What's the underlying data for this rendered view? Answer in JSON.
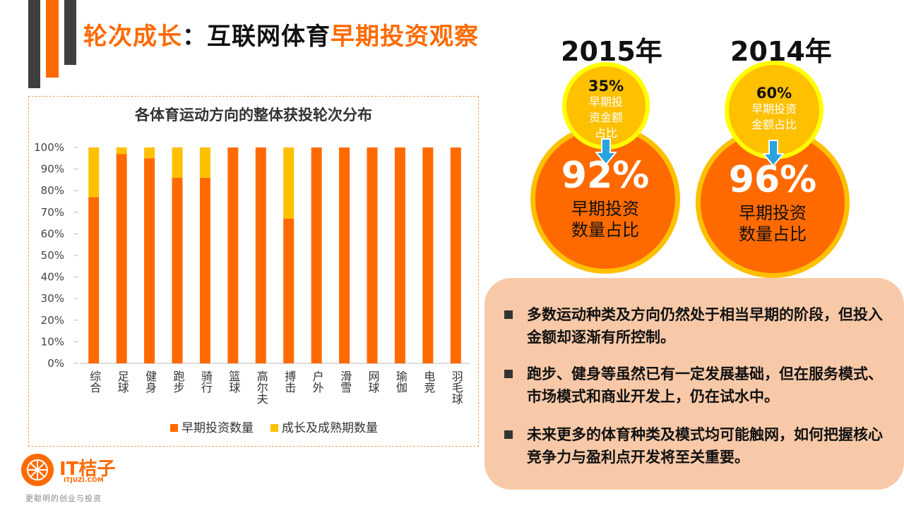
{
  "title": {
    "part1": "轮次成长",
    "colon": "：",
    "part2": "互联网体育",
    "part3": "早期投资观察"
  },
  "chart_data": {
    "type": "bar",
    "stacked": true,
    "title": "各体育运动方向的整体获投轮次分布",
    "categories": [
      "综合",
      "足球",
      "健身",
      "跑步",
      "骑行",
      "篮球",
      "高尔夫",
      "搏击",
      "户外",
      "滑雪",
      "网球",
      "瑜伽",
      "电竞",
      "羽毛球"
    ],
    "series": [
      {
        "name": "早期投资数量",
        "color": "#ff6a00",
        "values": [
          77,
          97,
          95,
          86,
          86,
          100,
          100,
          67,
          100,
          100,
          100,
          100,
          100,
          100
        ]
      },
      {
        "name": "成长及成熟期数量",
        "color": "#ffc000",
        "values": [
          23,
          3,
          5,
          14,
          14,
          0,
          0,
          33,
          0,
          0,
          0,
          0,
          0,
          0
        ]
      }
    ],
    "yticks": [
      "0%",
      "10%",
      "20%",
      "30%",
      "40%",
      "50%",
      "60%",
      "70%",
      "80%",
      "90%",
      "100%"
    ],
    "ylim": [
      0,
      100
    ],
    "legend": "bottom"
  },
  "stats": [
    {
      "year": "2015年",
      "early_amount_pct": "35%",
      "early_amount_label": [
        "早期投",
        "资金额",
        "占比"
      ],
      "early_count_pct": "92%",
      "early_count_label": [
        "早期投资",
        "数量占比"
      ]
    },
    {
      "year": "2014年",
      "early_amount_pct": "60%",
      "early_amount_label": [
        "早期投资",
        "金额占比"
      ],
      "early_count_pct": "96%",
      "early_count_label": [
        "早期投资",
        "数量占比"
      ]
    }
  ],
  "notes": [
    "多数运动种类及方向仍然处于相当早期的阶段，但投入金额却逐渐有所控制。",
    "跑步、健身等虽然已有一定发展基础，但在服务模式、市场模式和商业开发上，仍在试水中。",
    "未来更多的体育种类及模式均可能触网，如何把握核心竞争力与盈利点开发将至关重要。"
  ],
  "logo": {
    "name": "IT桔子",
    "domain": "ITJUZI.COM",
    "tagline": "更聪明的创业与投资"
  },
  "colors": {
    "accent": "#ff6a00",
    "yellow": "#ffc000",
    "dark": "#3f3f3f",
    "panel": "#f8c9a8"
  }
}
